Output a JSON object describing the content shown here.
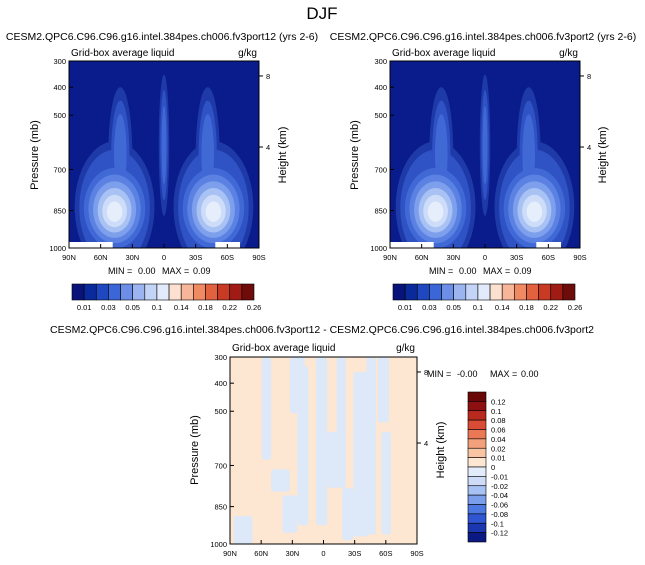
{
  "page": {
    "title": "DJF"
  },
  "colors": {
    "contour_levels": [
      "#0a1c8c",
      "#1e3aa8",
      "#2f52c4",
      "#4169d6",
      "#5b82e2",
      "#7d9fec",
      "#a8c2f4",
      "#cddcf8",
      "#e6eefb"
    ],
    "abs_bar": [
      "#08147a",
      "#0a2a9c",
      "#1f48c0",
      "#3b66d8",
      "#6d8ee6",
      "#9cb5f0",
      "#c3d4f7",
      "#e2ebfb",
      "#fce0d0",
      "#f7b599",
      "#f08a63",
      "#e2613f",
      "#c93a25",
      "#a01b14",
      "#6e0c0c"
    ],
    "diff_bar": [
      "#0a1a82",
      "#1a36b0",
      "#2f55d0",
      "#4d78e2",
      "#7a9dec",
      "#a8c1f4",
      "#cfdcf8",
      "#e3ecfb",
      "#fde6d2",
      "#f8c4a4",
      "#f3a07c",
      "#ea7857",
      "#d94d36",
      "#b82a1e",
      "#8c1010",
      "#6a0808"
    ],
    "diff_base": "#fde6d2",
    "diff_patch": "#dde9f8"
  },
  "chart_data": [
    {
      "type": "heatmap",
      "title": "CESM2.QPC6.C96.C96.g16.intel.384pes.ch006.fv3port12 (yrs 2-6)",
      "subtitle_left": "Grid-box average liquid",
      "subtitle_right": "g/kg",
      "ylabel": "Pressure (mb)",
      "ylabel_right": "Height (km)",
      "x_ticks": [
        "90N",
        "60N",
        "30N",
        "0",
        "30S",
        "60S",
        "90S"
      ],
      "y_ticks": [
        "300",
        "400",
        "500",
        "700",
        "850",
        "1000"
      ],
      "y_right_ticks": [
        "8",
        "4"
      ],
      "stats": {
        "min_label": "MIN =",
        "min": "0.00",
        "max_label": "MAX =",
        "max": "0.09"
      },
      "colorbar_labels": [
        "0.01",
        "0.03",
        "0.05",
        "0.1",
        "0.14",
        "0.18",
        "0.22",
        "0.26"
      ]
    },
    {
      "type": "heatmap",
      "title": "CESM2.QPC6.C96.C96.g16.intel.384pes.ch006.fv3port2 (yrs 2-6)",
      "subtitle_left": "Grid-box average liquid",
      "subtitle_right": "g/kg",
      "ylabel": "Pressure (mb)",
      "ylabel_right": "Height (km)",
      "x_ticks": [
        "90N",
        "60N",
        "30N",
        "0",
        "30S",
        "60S",
        "90S"
      ],
      "y_ticks": [
        "300",
        "400",
        "500",
        "700",
        "850",
        "1000"
      ],
      "y_right_ticks": [
        "8",
        "4"
      ],
      "stats": {
        "min_label": "MIN =",
        "min": "0.00",
        "max_label": "MAX =",
        "max": "0.09"
      },
      "colorbar_labels": [
        "0.01",
        "0.03",
        "0.05",
        "0.1",
        "0.14",
        "0.18",
        "0.22",
        "0.26"
      ]
    },
    {
      "type": "heatmap",
      "title": "CESM2.QPC6.C96.C96.g16.intel.384pes.ch006.fv3port12 - CESM2.QPC6.C96.C96.g16.intel.384pes.ch006.fv3port2",
      "subtitle_left": "Grid-box average liquid",
      "subtitle_right": "g/kg",
      "ylabel": "Pressure (mb)",
      "ylabel_right": "Height (km)",
      "x_ticks": [
        "90N",
        "60N",
        "30N",
        "0",
        "30S",
        "60S",
        "90S"
      ],
      "y_ticks": [
        "300",
        "400",
        "500",
        "700",
        "850",
        "1000"
      ],
      "y_right_ticks": [
        "8",
        "4"
      ],
      "stats": {
        "min_label": "MIN =",
        "min": "-0.00",
        "max_label": "MAX =",
        "max": "0.00"
      },
      "colorbar_labels": [
        "0.12",
        "0.1",
        "0.08",
        "0.06",
        "0.04",
        "0.02",
        "0.01",
        "0",
        "-0.01",
        "-0.02",
        "-0.04",
        "-0.06",
        "-0.08",
        "-0.1",
        "-0.12"
      ]
    }
  ]
}
